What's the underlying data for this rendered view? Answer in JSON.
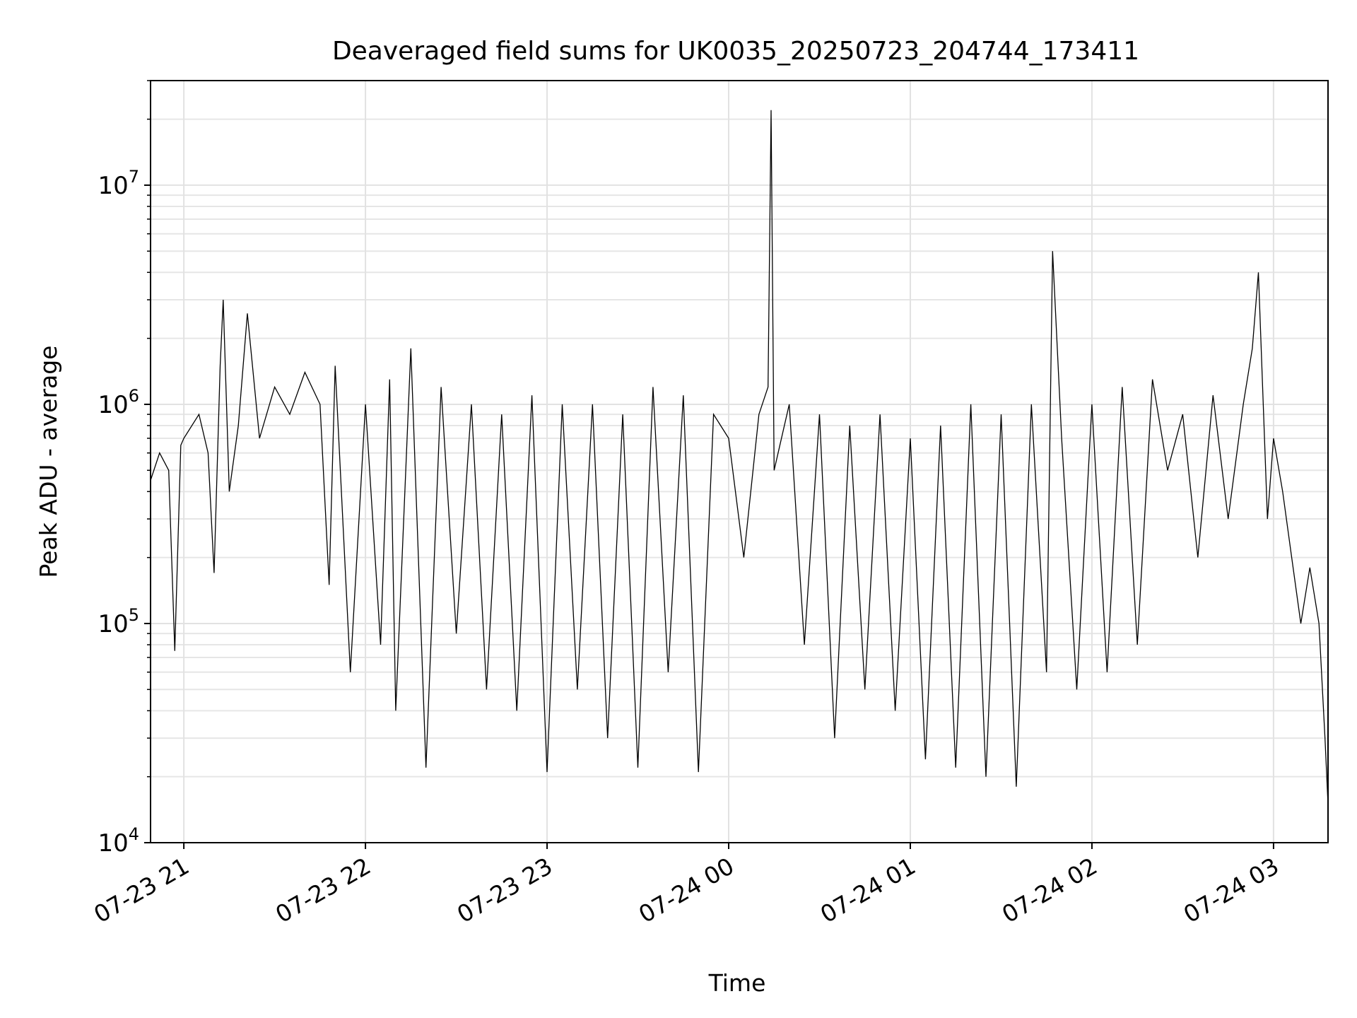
{
  "chart_data": {
    "type": "line",
    "title": "Deaveraged field sums for UK0035_20250723_204744_173411",
    "xlabel": "Time",
    "ylabel": "Peak ADU - average",
    "xscale": "time",
    "yscale": "log",
    "xlim": [
      "2025-07-23 20:49",
      "2025-07-24 03:18"
    ],
    "ylim": [
      10000,
      30000000
    ],
    "xticks": [
      {
        "t": "2025-07-23 21:00",
        "label": "07-23 21"
      },
      {
        "t": "2025-07-23 22:00",
        "label": "07-23 22"
      },
      {
        "t": "2025-07-23 23:00",
        "label": "07-23 23"
      },
      {
        "t": "2025-07-24 00:00",
        "label": "07-24 00"
      },
      {
        "t": "2025-07-24 01:00",
        "label": "07-24 01"
      },
      {
        "t": "2025-07-24 02:00",
        "label": "07-24 02"
      },
      {
        "t": "2025-07-24 03:00",
        "label": "07-24 03"
      }
    ],
    "yticks": [
      {
        "value": 10000,
        "base": "10",
        "exp": "4"
      },
      {
        "value": 100000,
        "base": "10",
        "exp": "5"
      },
      {
        "value": 1000000,
        "base": "10",
        "exp": "6"
      },
      {
        "value": 10000000,
        "base": "10",
        "exp": "7"
      }
    ],
    "grid": true,
    "line_color": "#000000",
    "series": [
      {
        "x": [
          "2025-07-23 20:49",
          "2025-07-23 20:52",
          "2025-07-23 20:55",
          "2025-07-23 20:57",
          "2025-07-23 20:59",
          "2025-07-23 21:00",
          "2025-07-23 21:05",
          "2025-07-23 21:08",
          "2025-07-23 21:10",
          "2025-07-23 21:12",
          "2025-07-23 21:13",
          "2025-07-23 21:15",
          "2025-07-23 21:18",
          "2025-07-23 21:21",
          "2025-07-23 21:25",
          "2025-07-23 21:30",
          "2025-07-23 21:35",
          "2025-07-23 21:40",
          "2025-07-23 21:45",
          "2025-07-23 21:48",
          "2025-07-23 21:50",
          "2025-07-23 21:55",
          "2025-07-23 22:00",
          "2025-07-23 22:05",
          "2025-07-23 22:08",
          "2025-07-23 22:10",
          "2025-07-23 22:15",
          "2025-07-23 22:20",
          "2025-07-23 22:25",
          "2025-07-23 22:30",
          "2025-07-23 22:35",
          "2025-07-23 22:40",
          "2025-07-23 22:45",
          "2025-07-23 22:50",
          "2025-07-23 22:55",
          "2025-07-23 23:00",
          "2025-07-23 23:05",
          "2025-07-23 23:10",
          "2025-07-23 23:15",
          "2025-07-23 23:20",
          "2025-07-23 23:25",
          "2025-07-23 23:30",
          "2025-07-23 23:35",
          "2025-07-23 23:40",
          "2025-07-23 23:45",
          "2025-07-23 23:50",
          "2025-07-23 23:55",
          "2025-07-24 00:00",
          "2025-07-24 00:05",
          "2025-07-24 00:10",
          "2025-07-24 00:13",
          "2025-07-24 00:14",
          "2025-07-24 00:15",
          "2025-07-24 00:20",
          "2025-07-24 00:25",
          "2025-07-24 00:30",
          "2025-07-24 00:35",
          "2025-07-24 00:40",
          "2025-07-24 00:45",
          "2025-07-24 00:50",
          "2025-07-24 00:55",
          "2025-07-24 01:00",
          "2025-07-24 01:05",
          "2025-07-24 01:10",
          "2025-07-24 01:15",
          "2025-07-24 01:20",
          "2025-07-24 01:25",
          "2025-07-24 01:30",
          "2025-07-24 01:35",
          "2025-07-24 01:40",
          "2025-07-24 01:45",
          "2025-07-24 01:47",
          "2025-07-24 01:50",
          "2025-07-24 01:55",
          "2025-07-24 02:00",
          "2025-07-24 02:05",
          "2025-07-24 02:10",
          "2025-07-24 02:15",
          "2025-07-24 02:20",
          "2025-07-24 02:25",
          "2025-07-24 02:30",
          "2025-07-24 02:35",
          "2025-07-24 02:40",
          "2025-07-24 02:45",
          "2025-07-24 02:50",
          "2025-07-24 02:53",
          "2025-07-24 02:55",
          "2025-07-24 02:58",
          "2025-07-24 03:00",
          "2025-07-24 03:03",
          "2025-07-24 03:06",
          "2025-07-24 03:09",
          "2025-07-24 03:12",
          "2025-07-24 03:15",
          "2025-07-24 03:17",
          "2025-07-24 03:18"
        ],
        "y": [
          450000,
          600000,
          500000,
          75000,
          650000,
          700000,
          900000,
          600000,
          170000,
          1500000,
          3000000,
          400000,
          800000,
          2600000,
          700000,
          1200000,
          900000,
          1400000,
          1000000,
          150000,
          1500000,
          60000,
          1000000,
          80000,
          1300000,
          40000,
          1800000,
          22000,
          1200000,
          90000,
          1000000,
          50000,
          900000,
          40000,
          1100000,
          21000,
          1000000,
          50000,
          1000000,
          30000,
          900000,
          22000,
          1200000,
          60000,
          1100000,
          21000,
          900000,
          700000,
          200000,
          900000,
          1200000,
          22000000,
          500000,
          1000000,
          80000,
          900000,
          30000,
          800000,
          50000,
          900000,
          40000,
          700000,
          24000,
          800000,
          22000,
          1000000,
          20000,
          900000,
          18000,
          1000000,
          60000,
          5000000,
          700000,
          50000,
          1000000,
          60000,
          1200000,
          80000,
          1300000,
          500000,
          900000,
          200000,
          1100000,
          300000,
          1000000,
          1800000,
          4000000,
          300000,
          700000,
          400000,
          200000,
          100000,
          180000,
          100000,
          30000,
          15000
        ]
      }
    ]
  }
}
